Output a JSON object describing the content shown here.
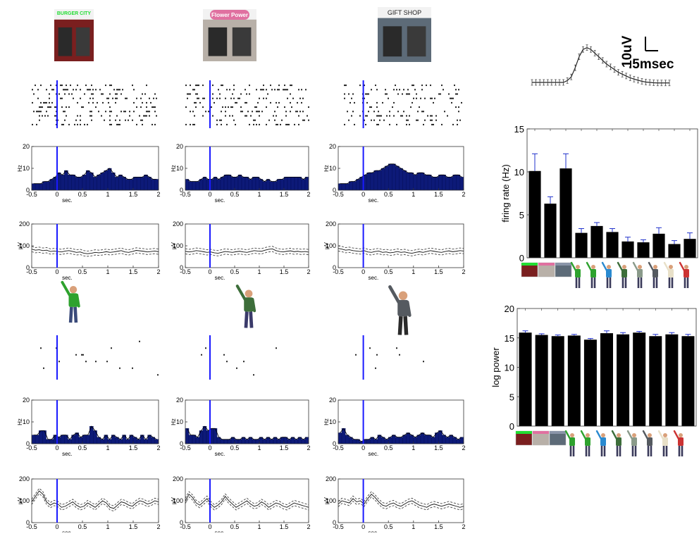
{
  "stimuli": {
    "store1": {
      "label": "BURGER CITY",
      "sign_color": "#22dd33",
      "bg": "#7a1f1f",
      "text_color": "#22dd33"
    },
    "store2": {
      "label": "Flower Power",
      "sign_color": "#e070a0",
      "bg": "#b8b0a8",
      "text_color": "#ffffff"
    },
    "store3": {
      "label": "GIFT SHOP",
      "sign_color": "#8a95a8",
      "bg": "#5d6b78",
      "text_color": "#222222"
    }
  },
  "waveform": {
    "scale_voltage": "10uV",
    "scale_time": ".5msec",
    "y": [
      0,
      0,
      0,
      0,
      0,
      0,
      0,
      0,
      0,
      1,
      3,
      8,
      14,
      18,
      19,
      18,
      16,
      14,
      12,
      10,
      8.5,
      7,
      5.5,
      4.5,
      3.5,
      2.5,
      1.8,
      1.2,
      0.6,
      0.2,
      0,
      -0.2,
      -0.3,
      -0.3,
      -0.3,
      -0.3
    ]
  },
  "chart_data": [
    {
      "type": "bar",
      "ylabel": "firing rate (Hz)",
      "ylim": [
        0,
        15
      ],
      "yticks": [
        "0",
        "5",
        "10",
        "15"
      ],
      "values": [
        10.1,
        6.3,
        10.4,
        2.9,
        3.7,
        3.0,
        1.9,
        1.8,
        2.8,
        1.6,
        2.2
      ],
      "errors": [
        2.0,
        0.8,
        1.7,
        0.5,
        0.4,
        0.4,
        0.5,
        0.3,
        0.7,
        0.4,
        0.7
      ],
      "bar_color": "#000000",
      "error_color": "#2233cc"
    },
    {
      "type": "bar",
      "ylabel": "log power",
      "ylim": [
        0,
        20
      ],
      "yticks": [
        "0",
        "5",
        "10",
        "15",
        "20"
      ],
      "values": [
        15.9,
        15.5,
        15.3,
        15.4,
        14.7,
        15.8,
        15.6,
        15.9,
        15.3,
        15.6,
        15.3
      ],
      "errors": [
        0.3,
        0.2,
        0.2,
        0.2,
        0.2,
        0.4,
        0.3,
        0.2,
        0.3,
        0.3,
        0.3
      ],
      "bar_color": "#000000",
      "error_color": "#2233cc"
    },
    {
      "type": "bar",
      "ylabel": "Hz",
      "xlabel": "sec.",
      "xlim": [
        -0.5,
        2
      ],
      "ylim": [
        0,
        20
      ],
      "xticks": [
        "-0.5",
        "0",
        "0.5",
        "1",
        "1.5",
        "2"
      ],
      "yticks": [
        "0",
        "10",
        "20"
      ],
      "panels": [
        {
          "id": "store1",
          "values": [
            3,
            3,
            3,
            4,
            4,
            5,
            6,
            8,
            7,
            9,
            7,
            7,
            6,
            6,
            7,
            9,
            8,
            6,
            7,
            8,
            9,
            10,
            8,
            6,
            7,
            6,
            5,
            5,
            6,
            6,
            6,
            7,
            6,
            5,
            5
          ]
        },
        {
          "id": "store2",
          "values": [
            5,
            4,
            4,
            4,
            5,
            6,
            5,
            5,
            6,
            5,
            6,
            7,
            7,
            6,
            6,
            7,
            6,
            6,
            5,
            6,
            6,
            5,
            4,
            5,
            4,
            4,
            5,
            5,
            6,
            6,
            6,
            6,
            6,
            5,
            6
          ]
        },
        {
          "id": "store3",
          "values": [
            3,
            3,
            3,
            4,
            4,
            5,
            6,
            7,
            8,
            8,
            9,
            9,
            10,
            11,
            12,
            12,
            11,
            10,
            9,
            8,
            8,
            7,
            8,
            8,
            7,
            7,
            6,
            6,
            7,
            7,
            6,
            6,
            7,
            7,
            6
          ]
        },
        {
          "id": "person1",
          "values": [
            4,
            4,
            6,
            6,
            2,
            2,
            4,
            3,
            4,
            4,
            2,
            4,
            5,
            3,
            4,
            4,
            8,
            6,
            3,
            2,
            4,
            2,
            4,
            3,
            2,
            4,
            2,
            4,
            3,
            2,
            4,
            2,
            4,
            3,
            2
          ]
        },
        {
          "id": "person2",
          "values": [
            7,
            4,
            4,
            3,
            6,
            8,
            6,
            7,
            7,
            3,
            2,
            2,
            2,
            3,
            2,
            2,
            3,
            2,
            3,
            2,
            2,
            3,
            2,
            3,
            2,
            3,
            2,
            3,
            3,
            2,
            3,
            2,
            3,
            2,
            3
          ]
        },
        {
          "id": "person3",
          "values": [
            5,
            7,
            4,
            3,
            2,
            2,
            1,
            2,
            2,
            3,
            2,
            4,
            3,
            2,
            3,
            4,
            3,
            3,
            4,
            5,
            4,
            3,
            4,
            5,
            4,
            4,
            3,
            5,
            6,
            4,
            3,
            4,
            3,
            2,
            3
          ]
        }
      ]
    },
    {
      "type": "line",
      "ylabel": "µV",
      "xlabel": "sec.",
      "xlim": [
        -0.5,
        2
      ],
      "ylim": [
        0,
        200
      ],
      "xticks": [
        "-0.5",
        "0",
        "0.5",
        "1",
        "1.5",
        "2"
      ],
      "yticks": [
        "0",
        "100",
        "200"
      ],
      "panels": [
        {
          "id": "store1",
          "values": [
            85,
            80,
            82,
            78,
            80,
            74,
            76,
            74,
            72,
            76,
            78,
            74,
            70,
            72,
            66,
            64,
            66,
            70,
            68,
            70,
            73,
            70,
            72,
            75,
            78,
            72,
            70,
            74,
            79,
            77,
            75,
            72,
            74,
            76,
            73
          ]
        },
        {
          "id": "store2",
          "values": [
            75,
            72,
            74,
            78,
            76,
            73,
            70,
            72,
            68,
            66,
            70,
            74,
            72,
            70,
            73,
            75,
            72,
            70,
            74,
            78,
            76,
            75,
            80,
            84,
            86,
            78,
            74,
            72,
            75,
            77,
            73,
            75,
            72,
            74,
            71
          ]
        },
        {
          "id": "store3",
          "values": [
            88,
            85,
            80,
            82,
            78,
            76,
            74,
            78,
            72,
            70,
            74,
            76,
            70,
            72,
            68,
            70,
            74,
            70,
            72,
            68,
            66,
            70,
            73,
            70,
            74,
            78,
            75,
            72,
            70,
            74,
            77,
            73,
            75,
            78,
            76
          ]
        },
        {
          "id": "person1",
          "values": [
            95,
            120,
            145,
            130,
            95,
            80,
            90,
            85,
            70,
            75,
            85,
            95,
            80,
            70,
            75,
            90,
            80,
            70,
            85,
            100,
            90,
            70,
            65,
            80,
            95,
            90,
            80,
            75,
            90,
            100,
            95,
            85,
            90,
            100,
            95
          ]
        },
        {
          "id": "person2",
          "values": [
            100,
            130,
            115,
            90,
            80,
            95,
            110,
            85,
            70,
            80,
            95,
            120,
            100,
            85,
            70,
            80,
            90,
            100,
            85,
            75,
            80,
            95,
            85,
            70,
            80,
            90,
            85,
            75,
            70,
            80,
            90,
            85,
            80,
            75,
            70
          ]
        },
        {
          "id": "person3",
          "values": [
            85,
            100,
            95,
            90,
            110,
            95,
            100,
            85,
            110,
            130,
            115,
            95,
            80,
            75,
            85,
            90,
            80,
            75,
            85,
            95,
            100,
            90,
            80,
            75,
            70,
            80,
            85,
            80,
            75,
            80,
            85,
            80,
            75,
            70,
            75
          ]
        }
      ]
    },
    {
      "type": "scatter",
      "xlim": [
        -0.5,
        2
      ],
      "panels": [
        {
          "id": "store1",
          "trials": 10,
          "rate": 0.55
        },
        {
          "id": "store2",
          "trials": 10,
          "rate": 0.55
        },
        {
          "id": "store3",
          "trials": 10,
          "rate": 0.45
        },
        {
          "id": "person1",
          "trials": 6,
          "rate": 0.06
        },
        {
          "id": "person2",
          "trials": 6,
          "rate": 0.05
        },
        {
          "id": "person3",
          "trials": 6,
          "rate": 0.06
        }
      ]
    }
  ]
}
